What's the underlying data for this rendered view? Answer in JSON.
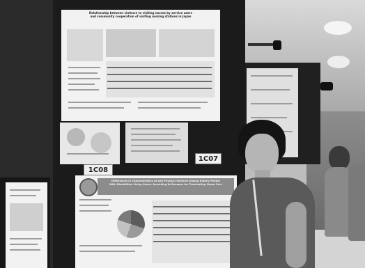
{
  "scene": {
    "board_codes": {
      "left": "1C08",
      "right": "1C07"
    },
    "poster_top": {
      "title_line1": "Relationship between violence to visiting nurses by service users",
      "title_line2": "and community cooperation of visiting nursing stations in Japan"
    },
    "poster_bottom": {
      "title_line1": "Differences in Characteristics of and Physical Violence Among Elderly People",
      "title_line2": "With Disabilities Living Alone: According to Reasons for Terminating Home Care"
    }
  }
}
